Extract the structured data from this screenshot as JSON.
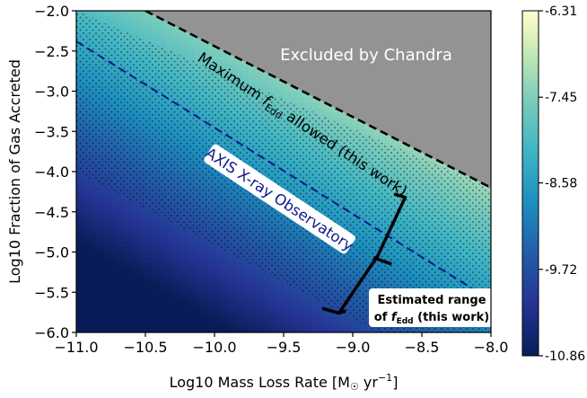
{
  "chart_data": {
    "type": "heatmap",
    "xlabel": "Log10 Mass Loss Rate [M",
    "xlabel_sun": "☉",
    "xlabel_unit": " yr",
    "xlabel_exp": "−1",
    "xlabel_close": "]",
    "ylabel": "Log10 Fraction of Gas Accreted",
    "xlim": [
      -11.0,
      -8.0
    ],
    "ylim": [
      -6.0,
      -2.0
    ],
    "xticks": [
      -11.0,
      -10.5,
      -10.0,
      -9.5,
      -9.0,
      -8.5,
      -8.0
    ],
    "xtick_labels": [
      "−11.0",
      "−10.5",
      "−10.0",
      "−9.5",
      "−9.0",
      "−8.5",
      "−8.0"
    ],
    "yticks": [
      -6.0,
      -5.5,
      -5.0,
      -4.5,
      -4.0,
      -3.5,
      -3.0,
      -2.5,
      -2.0
    ],
    "ytick_labels": [
      "−6.0",
      "−5.5",
      "−5.0",
      "−4.5",
      "−4.0",
      "−3.5",
      "−3.0",
      "−2.5",
      "−2.0"
    ],
    "colorbar": {
      "min": -10.86,
      "max": -6.31,
      "ticks": [
        -6.31,
        -7.45,
        -8.58,
        -9.72,
        -10.86
      ],
      "tick_labels": [
        "-6.31",
        "-7.45",
        "-8.58",
        "-9.72",
        "-10.86"
      ],
      "colormap": "YlGnBu_r"
    },
    "regions": {
      "chandra_excluded": {
        "label": "Excluded by Chandra",
        "boundary": [
          [
            -10.5,
            -2.0
          ],
          [
            -8.0,
            -4.2
          ]
        ],
        "color": "#939393"
      },
      "max_fedd_line": {
        "label_pre": "Maximum ",
        "label_f": "f",
        "label_sub": "Edd",
        "label_post": " allowed (this work)",
        "points": [
          [
            -10.5,
            -2.0
          ],
          [
            -8.0,
            -4.2
          ]
        ],
        "color": "#000000",
        "style": "dashed"
      },
      "axis_line": {
        "label": "AXIS X-ray Observatory",
        "points": [
          [
            -11.0,
            -2.38
          ],
          [
            -8.0,
            -5.6
          ]
        ],
        "color": "#0d1a8c",
        "style": "dashed"
      },
      "hatched_region": {
        "upper_boundary": [
          [
            -11.0,
            -2.0
          ],
          [
            -8.0,
            -4.2
          ]
        ],
        "lower_boundary": [
          [
            -11.0,
            -4.0
          ],
          [
            -8.0,
            -6.75
          ]
        ],
        "hatch": "dots"
      }
    },
    "fedd_range_bracket": {
      "label_line1": "Estimated range",
      "label_line2_pre": "of ",
      "label_line2_f": "f",
      "label_line2_sub": "Edd",
      "label_line2_post": " (this work)",
      "points": [
        [
          -9.22,
          -5.7
        ],
        [
          -9.1,
          -5.76
        ],
        [
          -8.82,
          -5.05
        ],
        [
          -8.62,
          -4.32
        ],
        [
          -8.7,
          -4.28
        ]
      ],
      "lower_tick": [
        [
          -9.1,
          -5.76
        ],
        [
          -9.05,
          -5.73
        ]
      ],
      "mid_tick": [
        [
          -8.85,
          -5.07
        ],
        [
          -8.72,
          -5.15
        ]
      ]
    },
    "contour": {
      "value": -8.58,
      "points": [
        [
          -11.0,
          -4.0
        ],
        [
          -8.0,
          -6.75
        ]
      ]
    }
  }
}
